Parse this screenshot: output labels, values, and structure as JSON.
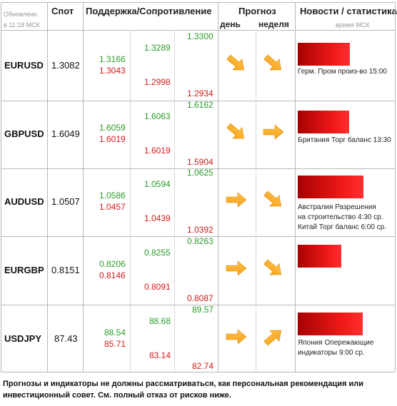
{
  "header": {
    "updated_line1": "Обновлено",
    "updated_line2": "в 11:18 МСК",
    "spot": "Спот",
    "support_resistance": "Поддержка/Сопротивление",
    "forecast": "Прогноз",
    "day": "день",
    "week": "неделя",
    "news": "Новости / статистика",
    "time_msk": "время МСК"
  },
  "rows": [
    {
      "symbol": "EURUSD",
      "spot": "1.3082",
      "lvl": {
        "c1g": "1.3166",
        "c1r": "1.3043",
        "c2g": "1.3289",
        "c2r": "1.2998",
        "c3g": "1.3300",
        "c3r": "1.2934"
      },
      "day_arrow": "arrow-down-right-icon",
      "week_arrow": "arrow-down-right-icon",
      "news": [
        "Герм. Пром произ-во 15:00"
      ]
    },
    {
      "symbol": "GBPUSD",
      "spot": "1.6049",
      "lvl": {
        "c1g": "1.6059",
        "c1r": "1.6019",
        "c2g": "1.6063",
        "c2r": "1.6019",
        "c3g": "1.6162",
        "c3r": "1.5904"
      },
      "day_arrow": "arrow-down-right-icon",
      "week_arrow": "arrow-right-icon",
      "news": [
        "Британия Торг баланс 13:30"
      ]
    },
    {
      "symbol": "AUDUSD",
      "spot": "1.0507",
      "lvl": {
        "c1g": "1.0586",
        "c1r": "1.0457",
        "c2g": "1.0594",
        "c2r": "1.0439",
        "c3g": "1.0625",
        "c3r": "1.0392"
      },
      "day_arrow": "arrow-right-icon",
      "week_arrow": "arrow-down-right-icon",
      "news": [
        "Австралия Разрешения",
        "на строительство 4:30 ср.",
        "Китай Торг баланс 6:00 ср."
      ]
    },
    {
      "symbol": "EURGBP",
      "spot": "0.8151",
      "lvl": {
        "c1g": "0.8206",
        "c1r": "0.8146",
        "c2g": "0.8255",
        "c2r": "0.8091",
        "c3g": "0.8263",
        "c3r": "0.8087"
      },
      "day_arrow": "arrow-right-icon",
      "week_arrow": "arrow-down-right-icon",
      "news": []
    },
    {
      "symbol": "USDJPY",
      "spot": "87.43",
      "lvl": {
        "c1g": "88.54",
        "c1r": "85.71",
        "c2g": "88.68",
        "c2r": "83.14",
        "c3g": "89.57",
        "c3r": "82.74"
      },
      "day_arrow": "arrow-right-icon",
      "week_arrow": "arrow-up-right-icon",
      "news": [
        "Япония Опережающие",
        "индикаторы 9:00 ср."
      ]
    }
  ],
  "news_bar_levels": [
    0.73,
    0.72,
    0.92,
    0.61,
    0.91
  ],
  "colors": {
    "support_green": "#2a9a2a",
    "resistance_red": "#d11a1a",
    "arrow_orange": "#f7a21a",
    "bar_red": "#e01010"
  },
  "footer": {
    "line1": "Прогнозы и индикаторы не должны рассматриваться, как персональная рекомендация или",
    "line2": "инвестиционный совет. См. полный отказ от рисков ниже."
  }
}
